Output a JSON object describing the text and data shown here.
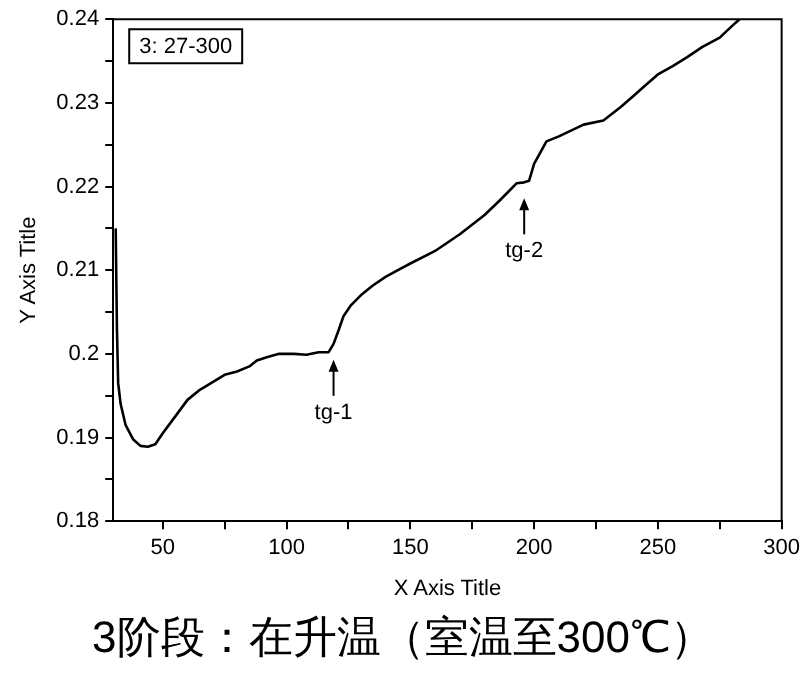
{
  "chart_data": {
    "type": "line",
    "title": "3阶段：在升温（室温至300℃）",
    "xlabel": "X Axis Title",
    "ylabel": "Y Axis Title",
    "x": [
      31,
      31.5,
      32,
      33,
      35,
      38,
      41,
      44,
      47,
      50,
      55,
      60,
      65,
      70,
      75,
      80,
      85,
      88,
      92,
      97,
      103,
      108,
      113,
      117,
      119,
      121,
      123,
      126,
      130,
      135,
      140,
      145,
      150,
      160,
      170,
      180,
      186,
      190,
      193,
      196,
      198,
      200,
      205,
      210,
      220,
      228,
      235,
      240,
      245,
      250,
      256,
      262,
      268,
      275,
      280,
      283
    ],
    "series": [
      {
        "color": "#000000",
        "values": [
          0.215,
          0.203,
          0.1965,
          0.194,
          0.1915,
          0.1898,
          0.189,
          0.1889,
          0.1892,
          0.1905,
          0.1925,
          0.1945,
          0.1957,
          0.1966,
          0.1975,
          0.1979,
          0.1985,
          0.1992,
          0.1996,
          0.2,
          0.2,
          0.1999,
          0.2002,
          0.2002,
          0.2012,
          0.2028,
          0.2045,
          0.2058,
          0.207,
          0.2082,
          0.2092,
          0.21,
          0.2108,
          0.2123,
          0.2143,
          0.2166,
          0.2183,
          0.2195,
          0.2204,
          0.2205,
          0.2207,
          0.2227,
          0.2254,
          0.226,
          0.2274,
          0.2279,
          0.2295,
          0.2308,
          0.2321,
          0.2334,
          0.2344,
          0.2355,
          0.2367,
          0.2378,
          0.2392,
          0.24
        ]
      }
    ],
    "xlim": [
      30,
      300
    ],
    "xticks": [
      50,
      {
        "value": 75,
        "label": null
      },
      100,
      {
        "value": 125,
        "label": null
      },
      150,
      {
        "value": 175,
        "label": null
      },
      200,
      {
        "value": 225,
        "label": null
      },
      250,
      {
        "value": 275,
        "label": null
      },
      300
    ],
    "ylim": [
      0.18,
      0.24
    ],
    "yticks": [
      0.18,
      {
        "value": 0.185,
        "label": null
      },
      0.19,
      {
        "value": 0.195,
        "label": null
      },
      0.2,
      {
        "value": 0.205,
        "label": null
      },
      0.21,
      {
        "value": 0.215,
        "label": null
      },
      0.22,
      {
        "value": 0.225,
        "label": null
      },
      0.23,
      {
        "value": 0.235,
        "label": null
      },
      0.24
    ],
    "grid": false,
    "legend": false,
    "marker": "none",
    "line_style": "solid",
    "annotations": [
      "3: 27-300",
      {
        "text": "tg-1",
        "x": 119,
        "y": 0.2012
      },
      {
        "text": "tg-2",
        "x": 196,
        "y": 0.2205
      }
    ]
  }
}
